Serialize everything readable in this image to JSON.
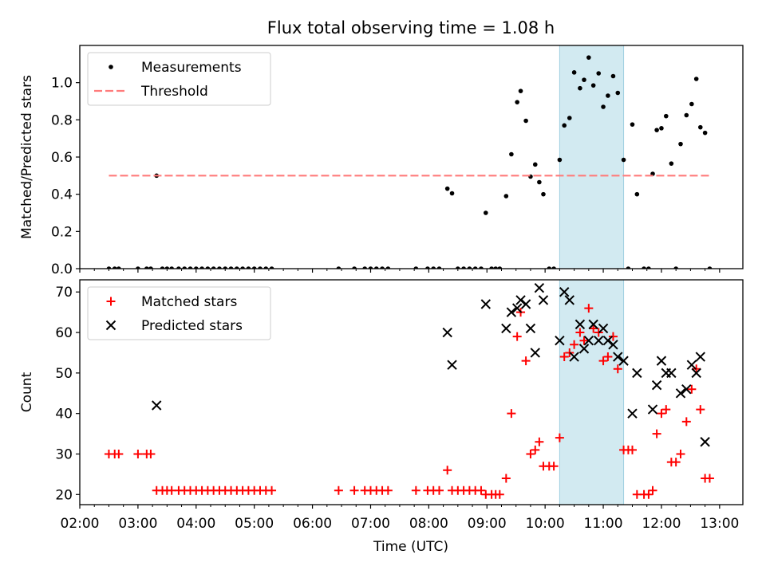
{
  "chart_data": [
    {
      "type": "scatter",
      "title": "Flux total observing time = 1.08 h",
      "xlabel": "",
      "ylabel": "Matched/Predicted stars",
      "xlim": [
        2.0,
        13.4
      ],
      "ylim": [
        0.0,
        1.2
      ],
      "yticks": [
        0.0,
        0.2,
        0.4,
        0.6,
        0.8,
        1.0
      ],
      "highlight_span": [
        10.25,
        11.35
      ],
      "legend_position": "upper-left",
      "series": [
        {
          "name": "Measurements",
          "marker": "dot",
          "color": "#000000",
          "points": [
            [
              2.5,
              0
            ],
            [
              2.6,
              0
            ],
            [
              2.67,
              0
            ],
            [
              3.0,
              0
            ],
            [
              3.15,
              0
            ],
            [
              3.22,
              0
            ],
            [
              3.32,
              0.5
            ],
            [
              3.42,
              0
            ],
            [
              3.5,
              0
            ],
            [
              3.58,
              0
            ],
            [
              3.7,
              0
            ],
            [
              3.8,
              0
            ],
            [
              3.9,
              0
            ],
            [
              4.0,
              0
            ],
            [
              4.1,
              0
            ],
            [
              4.2,
              0
            ],
            [
              4.3,
              0
            ],
            [
              4.4,
              0
            ],
            [
              4.5,
              0
            ],
            [
              4.6,
              0
            ],
            [
              4.7,
              0
            ],
            [
              4.8,
              0
            ],
            [
              4.9,
              0
            ],
            [
              5.0,
              0
            ],
            [
              5.1,
              0
            ],
            [
              5.2,
              0
            ],
            [
              5.3,
              0
            ],
            [
              6.45,
              0
            ],
            [
              6.72,
              0
            ],
            [
              6.9,
              0
            ],
            [
              7.0,
              0
            ],
            [
              7.1,
              0
            ],
            [
              7.2,
              0
            ],
            [
              7.3,
              0
            ],
            [
              7.78,
              0
            ],
            [
              7.98,
              0
            ],
            [
              8.08,
              0
            ],
            [
              8.18,
              0
            ],
            [
              8.32,
              0.43
            ],
            [
              8.4,
              0.405
            ],
            [
              8.5,
              0
            ],
            [
              8.6,
              0
            ],
            [
              8.7,
              0
            ],
            [
              8.8,
              0
            ],
            [
              8.9,
              0
            ],
            [
              8.98,
              0.3
            ],
            [
              9.08,
              0
            ],
            [
              9.15,
              0
            ],
            [
              9.22,
              0
            ],
            [
              9.33,
              0.39
            ],
            [
              9.42,
              0.615
            ],
            [
              9.52,
              0.895
            ],
            [
              9.58,
              0.955
            ],
            [
              9.67,
              0.795
            ],
            [
              9.75,
              0.495
            ],
            [
              9.83,
              0.56
            ],
            [
              9.9,
              0.465
            ],
            [
              9.97,
              0.4
            ],
            [
              10.07,
              0
            ],
            [
              10.15,
              0
            ],
            [
              10.25,
              0.585
            ],
            [
              10.33,
              0.77
            ],
            [
              10.42,
              0.81
            ],
            [
              10.5,
              1.055
            ],
            [
              10.6,
              0.97
            ],
            [
              10.67,
              1.015
            ],
            [
              10.75,
              1.135
            ],
            [
              10.83,
              0.985
            ],
            [
              10.92,
              1.05
            ],
            [
              11.0,
              0.87
            ],
            [
              11.08,
              0.93
            ],
            [
              11.17,
              1.035
            ],
            [
              11.25,
              0.945
            ],
            [
              11.35,
              0.585
            ],
            [
              11.43,
              0
            ],
            [
              11.5,
              0.775
            ],
            [
              11.58,
              0.4
            ],
            [
              11.7,
              0
            ],
            [
              11.78,
              0
            ],
            [
              11.85,
              0.51
            ],
            [
              11.92,
              0.745
            ],
            [
              12.0,
              0.755
            ],
            [
              12.08,
              0.82
            ],
            [
              12.17,
              0.565
            ],
            [
              12.25,
              0
            ],
            [
              12.33,
              0.67
            ],
            [
              12.43,
              0.825
            ],
            [
              12.52,
              0.885
            ],
            [
              12.6,
              1.02
            ],
            [
              12.67,
              0.76
            ],
            [
              12.75,
              0.73
            ],
            [
              12.83,
              0
            ]
          ]
        },
        {
          "name": "Threshold",
          "style": "dashed",
          "color": "#ff7b7b",
          "x": [
            2.5,
            12.83
          ],
          "y": [
            0.5,
            0.5
          ]
        }
      ]
    },
    {
      "type": "scatter",
      "title": "",
      "xlabel": "Time (UTC)",
      "ylabel": "Count",
      "xlim": [
        2.0,
        13.4
      ],
      "ylim": [
        17.5,
        73.0
      ],
      "yticks": [
        20,
        30,
        40,
        50,
        60,
        70
      ],
      "xticks": [
        "02:00",
        "03:00",
        "04:00",
        "05:00",
        "06:00",
        "07:00",
        "08:00",
        "09:00",
        "10:00",
        "11:00",
        "12:00",
        "13:00"
      ],
      "highlight_span": [
        10.25,
        11.35
      ],
      "legend_position": "upper-left",
      "series": [
        {
          "name": "Matched stars",
          "marker": "plus",
          "color": "#ff0000",
          "points": [
            [
              2.5,
              30
            ],
            [
              2.6,
              30
            ],
            [
              2.67,
              30
            ],
            [
              3.0,
              30
            ],
            [
              3.15,
              30
            ],
            [
              3.22,
              30
            ],
            [
              3.32,
              21
            ],
            [
              3.42,
              21
            ],
            [
              3.5,
              21
            ],
            [
              3.58,
              21
            ],
            [
              3.7,
              21
            ],
            [
              3.8,
              21
            ],
            [
              3.9,
              21
            ],
            [
              4.0,
              21
            ],
            [
              4.1,
              21
            ],
            [
              4.2,
              21
            ],
            [
              4.3,
              21
            ],
            [
              4.4,
              21
            ],
            [
              4.5,
              21
            ],
            [
              4.6,
              21
            ],
            [
              4.7,
              21
            ],
            [
              4.8,
              21
            ],
            [
              4.9,
              21
            ],
            [
              5.0,
              21
            ],
            [
              5.1,
              21
            ],
            [
              5.2,
              21
            ],
            [
              5.3,
              21
            ],
            [
              6.45,
              21
            ],
            [
              6.72,
              21
            ],
            [
              6.9,
              21
            ],
            [
              7.0,
              21
            ],
            [
              7.1,
              21
            ],
            [
              7.2,
              21
            ],
            [
              7.3,
              21
            ],
            [
              7.78,
              21
            ],
            [
              7.98,
              21
            ],
            [
              8.08,
              21
            ],
            [
              8.18,
              21
            ],
            [
              8.32,
              26
            ],
            [
              8.4,
              21
            ],
            [
              8.5,
              21
            ],
            [
              8.6,
              21
            ],
            [
              8.7,
              21
            ],
            [
              8.8,
              21
            ],
            [
              8.9,
              21
            ],
            [
              8.98,
              20
            ],
            [
              9.08,
              20
            ],
            [
              9.15,
              20
            ],
            [
              9.22,
              20
            ],
            [
              9.33,
              24
            ],
            [
              9.42,
              40
            ],
            [
              9.52,
              59
            ],
            [
              9.58,
              65
            ],
            [
              9.67,
              53
            ],
            [
              9.75,
              30
            ],
            [
              9.83,
              31
            ],
            [
              9.9,
              33
            ],
            [
              9.97,
              27
            ],
            [
              10.07,
              27
            ],
            [
              10.15,
              27
            ],
            [
              10.25,
              34
            ],
            [
              10.33,
              54
            ],
            [
              10.42,
              55
            ],
            [
              10.5,
              57
            ],
            [
              10.6,
              60
            ],
            [
              10.67,
              58
            ],
            [
              10.75,
              66
            ],
            [
              10.83,
              61
            ],
            [
              10.92,
              60
            ],
            [
              11.0,
              53
            ],
            [
              11.08,
              54
            ],
            [
              11.17,
              59
            ],
            [
              11.25,
              51
            ],
            [
              11.35,
              31
            ],
            [
              11.43,
              31
            ],
            [
              11.5,
              31
            ],
            [
              11.58,
              20
            ],
            [
              11.7,
              20
            ],
            [
              11.78,
              20
            ],
            [
              11.85,
              21
            ],
            [
              11.92,
              35
            ],
            [
              12.0,
              40
            ],
            [
              12.08,
              41
            ],
            [
              12.17,
              28
            ],
            [
              12.25,
              28
            ],
            [
              12.33,
              30
            ],
            [
              12.43,
              38
            ],
            [
              12.52,
              46
            ],
            [
              12.6,
              51
            ],
            [
              12.67,
              41
            ],
            [
              12.75,
              24
            ],
            [
              12.83,
              24
            ]
          ]
        },
        {
          "name": "Predicted stars",
          "marker": "x",
          "color": "#000000",
          "points": [
            [
              3.32,
              42
            ],
            [
              8.32,
              60
            ],
            [
              8.4,
              52
            ],
            [
              8.98,
              67
            ],
            [
              9.33,
              61
            ],
            [
              9.42,
              65
            ],
            [
              9.52,
              66
            ],
            [
              9.58,
              68
            ],
            [
              9.67,
              67
            ],
            [
              9.75,
              61
            ],
            [
              9.83,
              55
            ],
            [
              9.9,
              71
            ],
            [
              9.97,
              68
            ],
            [
              10.25,
              58
            ],
            [
              10.33,
              70
            ],
            [
              10.42,
              68
            ],
            [
              10.5,
              54
            ],
            [
              10.6,
              62
            ],
            [
              10.67,
              56
            ],
            [
              10.75,
              58
            ],
            [
              10.83,
              62
            ],
            [
              10.92,
              58
            ],
            [
              11.0,
              61
            ],
            [
              11.08,
              58
            ],
            [
              11.17,
              57
            ],
            [
              11.25,
              54
            ],
            [
              11.35,
              53
            ],
            [
              11.5,
              40
            ],
            [
              11.58,
              50
            ],
            [
              11.85,
              41
            ],
            [
              11.92,
              47
            ],
            [
              12.0,
              53
            ],
            [
              12.08,
              50
            ],
            [
              12.17,
              50
            ],
            [
              12.33,
              45
            ],
            [
              12.43,
              46
            ],
            [
              12.52,
              52
            ],
            [
              12.6,
              50
            ],
            [
              12.67,
              54
            ],
            [
              12.75,
              33
            ]
          ]
        }
      ]
    }
  ]
}
